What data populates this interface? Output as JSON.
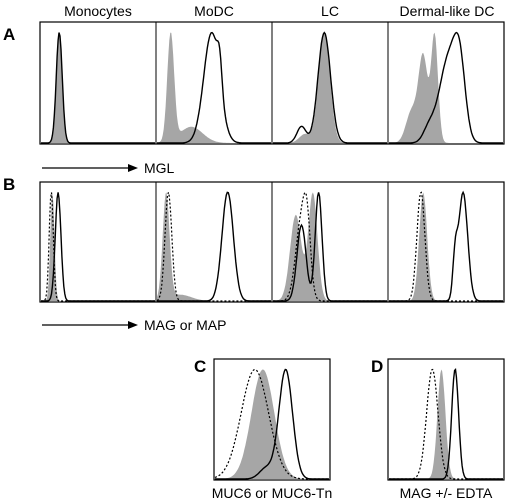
{
  "panel_letters": {
    "A": "A",
    "B": "B",
    "C": "C",
    "D": "D"
  },
  "column_titles": [
    "Monocytes",
    "MoDC",
    "LC",
    "Dermal-like DC"
  ],
  "axis_labels": {
    "A": "MGL",
    "B": "MAG or MAP",
    "C": "MUC6 or MUC6-Tn",
    "D": "MAG +/- EDTA"
  },
  "colors": {
    "filled": "#a6a6a6",
    "line": "#000000",
    "frame": "#000000"
  },
  "chart_data": [
    {
      "type": "area",
      "panel": "A",
      "xlabel": "MGL",
      "subplots": [
        {
          "title": "Monocytes",
          "filled": [
            {
              "mu": 0.16,
              "sigma": 0.028,
              "weight": 1
            }
          ],
          "solid": [
            {
              "mu": 0.16,
              "sigma": 0.026,
              "weight": 1
            }
          ]
        },
        {
          "title": "MoDC",
          "filled": [
            {
              "mu": 0.12,
              "sigma": 0.03,
              "weight": 1
            },
            {
              "mu": 0.3,
              "sigma": 0.1,
              "weight": 0.15
            }
          ],
          "solid": [
            {
              "mu": 0.48,
              "sigma": 0.07,
              "weight": 1
            },
            {
              "mu": 0.55,
              "sigma": 0.02,
              "weight": 0.25
            }
          ]
        },
        {
          "title": "LC",
          "filled": [
            {
              "mu": 0.45,
              "sigma": 0.05,
              "weight": 1
            },
            {
              "mu": 0.28,
              "sigma": 0.05,
              "weight": 0.08
            }
          ],
          "solid": [
            {
              "mu": 0.45,
              "sigma": 0.055,
              "weight": 1
            },
            {
              "mu": 0.25,
              "sigma": 0.04,
              "weight": 0.15
            }
          ]
        },
        {
          "title": "Dermal-like DC",
          "filled": [
            {
              "mu": 0.3,
              "sigma": 0.04,
              "weight": 0.8
            },
            {
              "mu": 0.4,
              "sigma": 0.03,
              "weight": 1
            },
            {
              "mu": 0.2,
              "sigma": 0.05,
              "weight": 0.3
            }
          ],
          "solid": [
            {
              "mu": 0.52,
              "sigma": 0.08,
              "weight": 0.9
            },
            {
              "mu": 0.62,
              "sigma": 0.05,
              "weight": 0.7
            },
            {
              "mu": 0.35,
              "sigma": 0.05,
              "weight": 0.15
            }
          ]
        }
      ]
    },
    {
      "type": "area",
      "panel": "B",
      "xlabel": "MAG or MAP",
      "subplots": [
        {
          "title": "Monocytes",
          "filled": [
            {
              "mu": 0.1,
              "sigma": 0.018,
              "weight": 1
            }
          ],
          "solid": [
            {
              "mu": 0.15,
              "sigma": 0.025,
              "weight": 1
            }
          ],
          "dotted": [
            {
              "mu": 0.09,
              "sigma": 0.018,
              "weight": 1
            }
          ]
        },
        {
          "title": "MoDC",
          "filled": [
            {
              "mu": 0.08,
              "sigma": 0.03,
              "weight": 1
            },
            {
              "mu": 0.2,
              "sigma": 0.1,
              "weight": 0.06
            }
          ],
          "solid": [
            {
              "mu": 0.62,
              "sigma": 0.05,
              "weight": 1
            }
          ],
          "dotted": [
            {
              "mu": 0.1,
              "sigma": 0.03,
              "weight": 1
            }
          ]
        },
        {
          "title": "LC",
          "filled": [
            {
              "mu": 0.2,
              "sigma": 0.05,
              "weight": 0.8
            },
            {
              "mu": 0.35,
              "sigma": 0.04,
              "weight": 1
            }
          ],
          "solid": [
            {
              "mu": 0.25,
              "sigma": 0.04,
              "weight": 0.7
            },
            {
              "mu": 0.4,
              "sigma": 0.03,
              "weight": 1
            }
          ],
          "dotted": [
            {
              "mu": 0.25,
              "sigma": 0.05,
              "weight": 0.8
            },
            {
              "mu": 0.3,
              "sigma": 0.03,
              "weight": 0.5
            }
          ]
        },
        {
          "title": "Dermal-like DC",
          "filled": [
            {
              "mu": 0.3,
              "sigma": 0.035,
              "weight": 1
            }
          ],
          "solid": [
            {
              "mu": 0.65,
              "sigma": 0.04,
              "weight": 1
            },
            {
              "mu": 0.58,
              "sigma": 0.02,
              "weight": 0.35
            }
          ],
          "dotted": [
            {
              "mu": 0.28,
              "sigma": 0.035,
              "weight": 1
            }
          ]
        }
      ]
    },
    {
      "type": "area",
      "panel": "C",
      "xlabel": "MUC6 or MUC6-Tn",
      "subplots": [
        {
          "title": "",
          "filled": [
            {
              "mu": 0.42,
              "sigma": 0.1,
              "weight": 1
            }
          ],
          "solid": [
            {
              "mu": 0.62,
              "sigma": 0.06,
              "weight": 1
            },
            {
              "mu": 0.45,
              "sigma": 0.06,
              "weight": 0.1
            }
          ],
          "dotted": [
            {
              "mu": 0.35,
              "sigma": 0.12,
              "weight": 1
            }
          ]
        }
      ]
    },
    {
      "type": "area",
      "panel": "D",
      "xlabel": "MAG +/- EDTA",
      "subplots": [
        {
          "title": "",
          "filled": [
            {
              "mu": 0.46,
              "sigma": 0.035,
              "weight": 1
            }
          ],
          "solid": [
            {
              "mu": 0.58,
              "sigma": 0.03,
              "weight": 1
            }
          ],
          "dotted": [
            {
              "mu": 0.38,
              "sigma": 0.05,
              "weight": 1
            }
          ]
        }
      ]
    }
  ]
}
